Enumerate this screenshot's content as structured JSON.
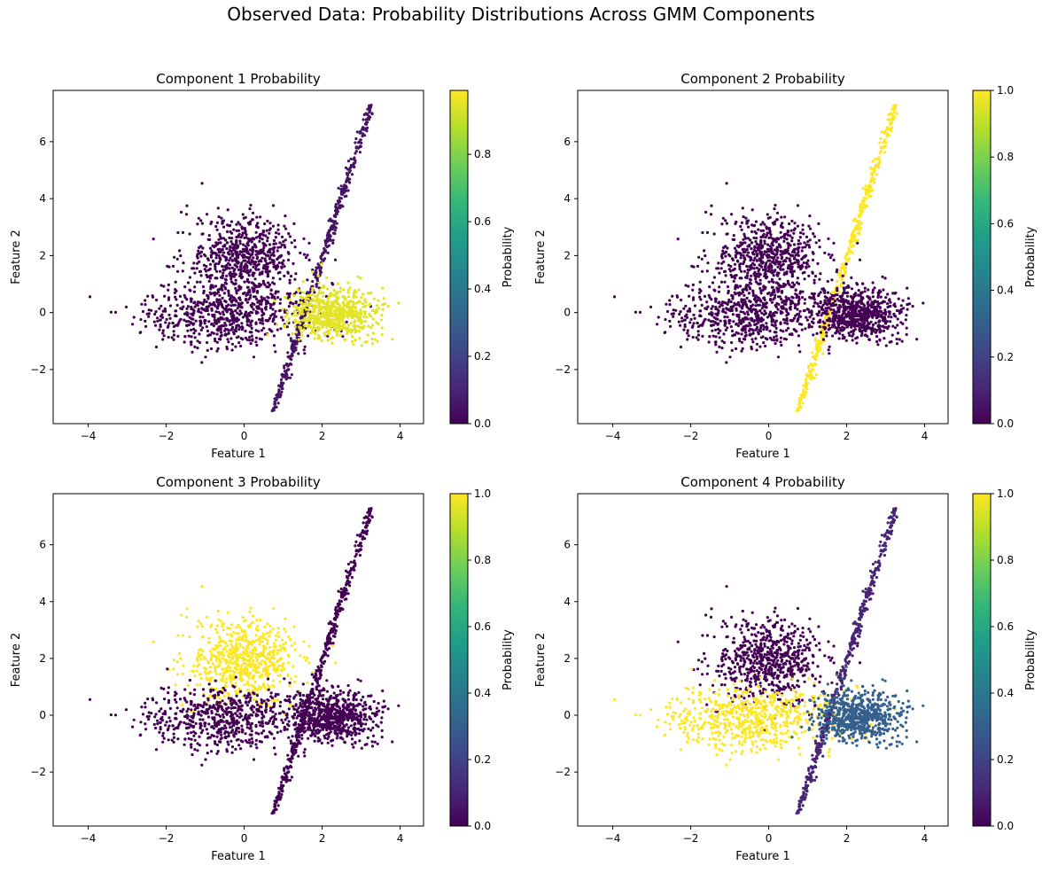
{
  "figure": {
    "title": "Observed Data: Probability Distributions Across GMM Components",
    "colormap": "viridis",
    "colormap_stops": [
      "#440154",
      "#482878",
      "#3e4989",
      "#31688e",
      "#26828e",
      "#1f9e89",
      "#35b779",
      "#6ece58",
      "#b5de2b",
      "#fde725"
    ]
  },
  "chart_data": [
    {
      "type": "scatter",
      "title": "Component 1 Probability",
      "xlabel": "Feature 1",
      "ylabel": "Feature 2",
      "xlim": [
        -4.9,
        4.6
      ],
      "ylim": [
        -3.9,
        7.8
      ],
      "xticks": [
        -4,
        -2,
        0,
        2,
        4
      ],
      "yticks": [
        -2,
        0,
        2,
        4,
        6
      ],
      "grid": false,
      "colorbar": {
        "label": "Probability",
        "range": [
          0,
          0.99
        ],
        "ticks": [
          0.0,
          0.2,
          0.4,
          0.6,
          0.8
        ]
      },
      "clusters": [
        {
          "name": "upper-left blob",
          "center": [
            0.0,
            1.9
          ],
          "spread": [
            0.7,
            0.75
          ],
          "probability": 0.0
        },
        {
          "name": "lower-left band",
          "center": [
            -0.5,
            -0.1
          ],
          "spread": [
            1.1,
            0.55
          ],
          "probability": 0.0
        },
        {
          "name": "diagonal line",
          "from": [
            0.75,
            -3.4
          ],
          "to": [
            3.25,
            7.2
          ],
          "probability": 0.05
        },
        {
          "name": "right blob",
          "center": [
            2.3,
            0.0
          ],
          "spread": [
            0.55,
            0.45
          ],
          "probability": 0.95
        }
      ]
    },
    {
      "type": "scatter",
      "title": "Component 2 Probability",
      "xlabel": "Feature 1",
      "ylabel": "Feature 2",
      "xlim": [
        -4.9,
        4.6
      ],
      "ylim": [
        -3.9,
        7.8
      ],
      "xticks": [
        -4,
        -2,
        0,
        2,
        4
      ],
      "yticks": [
        -2,
        0,
        2,
        4,
        6
      ],
      "grid": false,
      "colorbar": {
        "label": "Probability",
        "range": [
          0,
          1.0
        ],
        "ticks": [
          0.0,
          0.2,
          0.4,
          0.6,
          0.8,
          1.0
        ]
      },
      "clusters": [
        {
          "name": "upper-left blob",
          "center": [
            0.0,
            1.9
          ],
          "spread": [
            0.7,
            0.75
          ],
          "probability": 0.0
        },
        {
          "name": "lower-left band",
          "center": [
            -0.5,
            -0.1
          ],
          "spread": [
            1.1,
            0.55
          ],
          "probability": 0.0
        },
        {
          "name": "diagonal line",
          "from": [
            0.75,
            -3.4
          ],
          "to": [
            3.25,
            7.2
          ],
          "probability": 1.0
        },
        {
          "name": "right blob",
          "center": [
            2.3,
            0.0
          ],
          "spread": [
            0.55,
            0.45
          ],
          "probability": 0.0
        }
      ]
    },
    {
      "type": "scatter",
      "title": "Component 3 Probability",
      "xlabel": "Feature 1",
      "ylabel": "Feature 2",
      "xlim": [
        -4.9,
        4.6
      ],
      "ylim": [
        -3.9,
        7.8
      ],
      "xticks": [
        -4,
        -2,
        0,
        2,
        4
      ],
      "yticks": [
        -2,
        0,
        2,
        4,
        6
      ],
      "grid": false,
      "colorbar": {
        "label": "Probability",
        "range": [
          0,
          1.0
        ],
        "ticks": [
          0.0,
          0.2,
          0.4,
          0.6,
          0.8,
          1.0
        ]
      },
      "clusters": [
        {
          "name": "upper-left blob",
          "center": [
            0.0,
            1.9
          ],
          "spread": [
            0.7,
            0.75
          ],
          "probability": 1.0
        },
        {
          "name": "lower-left band",
          "center": [
            -0.5,
            -0.1
          ],
          "spread": [
            1.1,
            0.55
          ],
          "probability": 0.0
        },
        {
          "name": "diagonal line",
          "from": [
            0.75,
            -3.4
          ],
          "to": [
            3.25,
            7.2
          ],
          "probability": 0.0
        },
        {
          "name": "right blob",
          "center": [
            2.3,
            0.0
          ],
          "spread": [
            0.55,
            0.45
          ],
          "probability": 0.0
        }
      ]
    },
    {
      "type": "scatter",
      "title": "Component 4 Probability",
      "xlabel": "Feature 1",
      "ylabel": "Feature 2",
      "xlim": [
        -4.9,
        4.6
      ],
      "ylim": [
        -3.9,
        7.8
      ],
      "xticks": [
        -4,
        -2,
        0,
        2,
        4
      ],
      "yticks": [
        -2,
        0,
        2,
        4,
        6
      ],
      "grid": false,
      "colorbar": {
        "label": "Probability",
        "range": [
          0,
          1.0
        ],
        "ticks": [
          0.0,
          0.2,
          0.4,
          0.6,
          0.8,
          1.0
        ]
      },
      "clusters": [
        {
          "name": "upper-left blob",
          "center": [
            0.0,
            1.9
          ],
          "spread": [
            0.7,
            0.75
          ],
          "probability": 0.0
        },
        {
          "name": "lower-left band",
          "center": [
            -0.5,
            -0.1
          ],
          "spread": [
            1.1,
            0.55
          ],
          "probability": 1.0
        },
        {
          "name": "diagonal line",
          "from": [
            0.75,
            -3.4
          ],
          "to": [
            3.25,
            7.2
          ],
          "probability": 0.1
        },
        {
          "name": "right blob",
          "center": [
            2.3,
            0.0
          ],
          "spread": [
            0.55,
            0.45
          ],
          "probability": 0.3
        }
      ]
    }
  ]
}
